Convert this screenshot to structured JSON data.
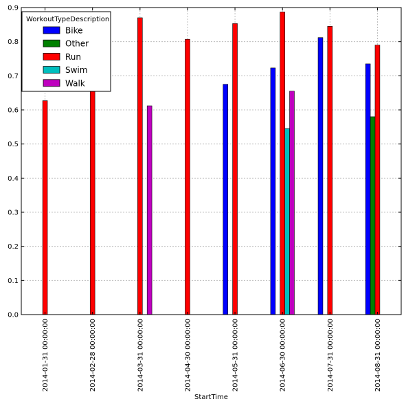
{
  "chart_data": {
    "type": "bar",
    "title": "",
    "xlabel": "StartTime",
    "ylabel": "",
    "ylim": [
      0,
      0.9
    ],
    "yticks": [
      "0.0",
      "0.1",
      "0.2",
      "0.3",
      "0.4",
      "0.5",
      "0.6",
      "0.7",
      "0.8",
      "0.9"
    ],
    "grid": true,
    "legend": {
      "title": "WorkoutTypeDescription",
      "placement": "top-left"
    },
    "categories": [
      "2014-01-31 00:00:00",
      "2014-02-28 00:00:00",
      "2014-03-31 00:00:00",
      "2014-04-30 00:00:00",
      "2014-05-31 00:00:00",
      "2014-06-30 00:00:00",
      "2014-07-31 00:00:00",
      "2014-08-31 00:00:00"
    ],
    "series": [
      {
        "name": "Bike",
        "color": "#0000ff",
        "values": [
          null,
          null,
          null,
          null,
          0.675,
          0.723,
          0.812,
          0.735
        ]
      },
      {
        "name": "Other",
        "color": "#008000",
        "values": [
          null,
          null,
          null,
          null,
          null,
          null,
          null,
          0.58
        ]
      },
      {
        "name": "Run",
        "color": "#ff0000",
        "values": [
          0.627,
          0.657,
          0.87,
          0.807,
          0.853,
          0.887,
          0.845,
          0.79
        ]
      },
      {
        "name": "Swim",
        "color": "#00bfbf",
        "values": [
          null,
          null,
          null,
          null,
          null,
          0.545,
          null,
          null
        ]
      },
      {
        "name": "Walk",
        "color": "#bf00bf",
        "values": [
          null,
          null,
          0.612,
          null,
          null,
          0.655,
          null,
          null
        ]
      }
    ]
  }
}
